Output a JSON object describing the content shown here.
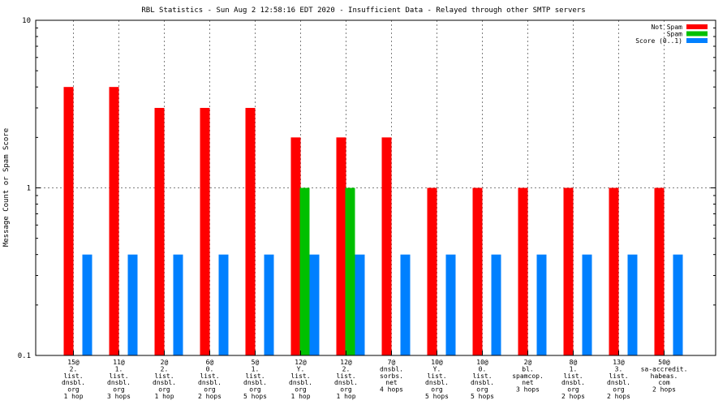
{
  "chart_data": {
    "type": "bar",
    "title": "RBL Statistics - Sun Aug  2 12:58:16 EDT 2020 - Insufficient Data - Relayed through other SMTP servers",
    "xlabel": "",
    "ylabel": "Message Count or Spam Score",
    "y_scale": "log",
    "ylim": [
      0.1,
      10
    ],
    "y_ticks": [
      {
        "value": 0.1,
        "label": "0.1"
      },
      {
        "value": 1,
        "label": "1"
      },
      {
        "value": 10,
        "label": "10"
      }
    ],
    "grid": "dotted horizontal at decades, dotted vertical at categories",
    "legend_position": "top-right",
    "categories": [
      [
        "15@",
        "2.",
        "list.",
        "dnsbl.",
        "org",
        "1 hop"
      ],
      [
        "11@",
        "1.",
        "list.",
        "dnsbl.",
        "org",
        "3 hops"
      ],
      [
        "2@",
        "2.",
        "list.",
        "dnsbl.",
        "org",
        "1 hop"
      ],
      [
        "6@",
        "0.",
        "list.",
        "dnsbl.",
        "org",
        "2 hops"
      ],
      [
        "5@",
        "1.",
        "list.",
        "dnsbl.",
        "org",
        "5 hops"
      ],
      [
        "12@",
        "Y.",
        "list.",
        "dnsbl.",
        "org",
        "1 hop"
      ],
      [
        "12@",
        "2.",
        "list.",
        "dnsbl.",
        "org",
        "1 hop"
      ],
      [
        "7@",
        "dnsbl.",
        "sorbs.",
        "net",
        "4 hops"
      ],
      [
        "10@",
        "Y.",
        "list.",
        "dnsbl.",
        "org",
        "5 hops"
      ],
      [
        "10@",
        "0.",
        "list.",
        "dnsbl.",
        "org",
        "5 hops"
      ],
      [
        "2@",
        "bl.",
        "spamcop.",
        "net",
        "3 hops"
      ],
      [
        "8@",
        "1.",
        "list.",
        "dnsbl.",
        "org",
        "2 hops"
      ],
      [
        "13@",
        "3.",
        "list.",
        "dnsbl.",
        "org",
        "2 hops"
      ],
      [
        "50@",
        "sa-accredit.",
        "habeas.",
        "com",
        "2 hops"
      ]
    ],
    "series": [
      {
        "name": "Not Spam",
        "color": "#ff0000",
        "values": [
          4,
          4,
          3,
          3,
          3,
          2,
          2,
          2,
          1,
          1,
          1,
          1,
          1,
          1
        ]
      },
      {
        "name": "Spam",
        "color": "#00c000",
        "values": [
          0,
          0,
          0,
          0,
          0,
          1,
          1,
          0,
          0,
          0,
          0,
          0,
          0,
          0
        ]
      },
      {
        "name": "Score (0..1)",
        "color": "#0080ff",
        "values": [
          0.4,
          0.4,
          0.4,
          0.4,
          0.4,
          0.4,
          0.4,
          0.4,
          0.4,
          0.4,
          0.4,
          0.4,
          0.4,
          0.4
        ]
      }
    ]
  }
}
